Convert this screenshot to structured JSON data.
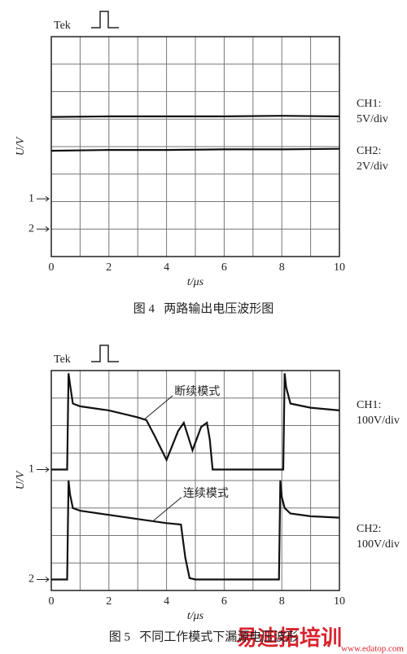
{
  "chart_data": [
    {
      "type": "line",
      "caption": "图 4   两路输出电压波形图",
      "x_label": "t/μs",
      "y_label": "U/V",
      "scope_label": "Tek",
      "xlim": [
        0,
        10
      ],
      "xticks": [
        0,
        2,
        4,
        6,
        8,
        10
      ],
      "ylim": [
        0,
        8
      ],
      "xgrid": [
        0,
        1,
        2,
        3,
        4,
        5,
        6,
        7,
        8,
        9,
        10
      ],
      "ygrid": [
        0,
        1,
        2,
        3,
        4,
        5,
        6,
        7,
        8
      ],
      "grid": true,
      "channel_markers": [
        {
          "label": "1",
          "value": 2.1
        },
        {
          "label": "2",
          "value": 1.0
        }
      ],
      "series": [
        {
          "name": "CH1:",
          "scale": "5V/div",
          "color": "#111111",
          "x": [
            0,
            2,
            4,
            6,
            8,
            10
          ],
          "values": [
            5.08,
            5.1,
            5.1,
            5.1,
            5.12,
            5.1
          ]
        },
        {
          "name": "CH2:",
          "scale": "2V/div",
          "color": "#111111",
          "x": [
            0,
            2,
            4,
            6,
            8,
            10
          ],
          "values": [
            3.85,
            3.88,
            3.88,
            3.9,
            3.9,
            3.92
          ]
        }
      ]
    },
    {
      "type": "line",
      "caption": "图 5   不同工作模式下漏源电压波形",
      "x_label": "t/μs",
      "y_label": "U/V",
      "scope_label": "Tek",
      "xlim": [
        0,
        10
      ],
      "xticks": [
        0,
        2,
        4,
        6,
        8,
        10
      ],
      "ylim": [
        0,
        8
      ],
      "xgrid": [
        0,
        1,
        2,
        3,
        4,
        5,
        6,
        7,
        8,
        9,
        10
      ],
      "ygrid": [
        0,
        1,
        2,
        3,
        4,
        5,
        6,
        7,
        8
      ],
      "grid": true,
      "channel_markers": [
        {
          "label": "1",
          "value": 4.4
        },
        {
          "label": "2",
          "value": 0.4
        }
      ],
      "annotations": [
        {
          "text": "断续模式",
          "x": 3.2,
          "y": 6.2
        },
        {
          "text": "连续模式",
          "x": 3.5,
          "y": 2.5
        }
      ],
      "series": [
        {
          "name": "CH1:",
          "scale": "100V/div",
          "color": "#111111",
          "x": [
            0,
            0.55,
            0.6,
            0.65,
            0.75,
            1,
            2,
            3,
            3.3,
            3.6,
            4,
            4.4,
            4.6,
            4.9,
            5.2,
            5.4,
            5.5,
            5.6,
            6,
            7,
            8.05,
            8.1,
            8.15,
            8.3,
            9,
            10
          ],
          "values": [
            4.4,
            4.4,
            7.9,
            7.5,
            6.8,
            6.7,
            6.55,
            6.3,
            6.2,
            5.6,
            4.75,
            5.8,
            6.1,
            5.1,
            5.95,
            6.1,
            5.5,
            4.4,
            4.4,
            4.4,
            4.4,
            7.9,
            7.4,
            6.8,
            6.65,
            6.55
          ]
        },
        {
          "name": "CH2:",
          "scale": "100V/div",
          "color": "#111111",
          "x": [
            0,
            0.55,
            0.6,
            0.65,
            0.75,
            1,
            2,
            3,
            4,
            4.5,
            4.65,
            4.8,
            5,
            6,
            7,
            7.9,
            7.95,
            8,
            8.1,
            8.3,
            9,
            10
          ],
          "values": [
            0.4,
            0.4,
            4.0,
            3.5,
            3.0,
            2.9,
            2.75,
            2.6,
            2.45,
            2.4,
            1.2,
            0.45,
            0.4,
            0.4,
            0.4,
            0.4,
            4.0,
            3.4,
            3.0,
            2.8,
            2.7,
            2.65
          ]
        }
      ]
    }
  ],
  "watermark": {
    "text": "易迪拓培训",
    "url": "www.edatop.com"
  }
}
